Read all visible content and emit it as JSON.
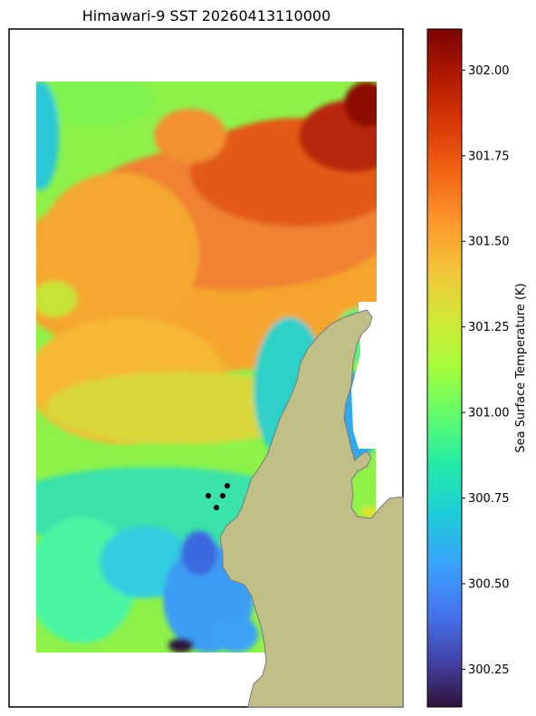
{
  "figure": {
    "title": "Himawari-9 SST 20260413110000"
  },
  "colorbar": {
    "label": "Sea Surface Temperature (K)",
    "ticks": [
      "300.25",
      "300.50",
      "300.75",
      "301.00",
      "301.25",
      "301.50",
      "301.75",
      "302.00"
    ],
    "tick_values": [
      300.25,
      300.5,
      300.75,
      301.0,
      301.25,
      301.5,
      301.75,
      302.0
    ],
    "vmin": 300.14,
    "vmax": 302.12,
    "colormap": "turbo"
  },
  "map": {
    "land_color": "#bfbf87",
    "coast_color": "#7a7a7a",
    "station_markers": [
      {
        "label": "",
        "color": "#000000"
      },
      {
        "label": "",
        "color": "#000000"
      },
      {
        "label": "",
        "color": "#000000"
      },
      {
        "label": "",
        "color": "#000000"
      }
    ]
  }
}
